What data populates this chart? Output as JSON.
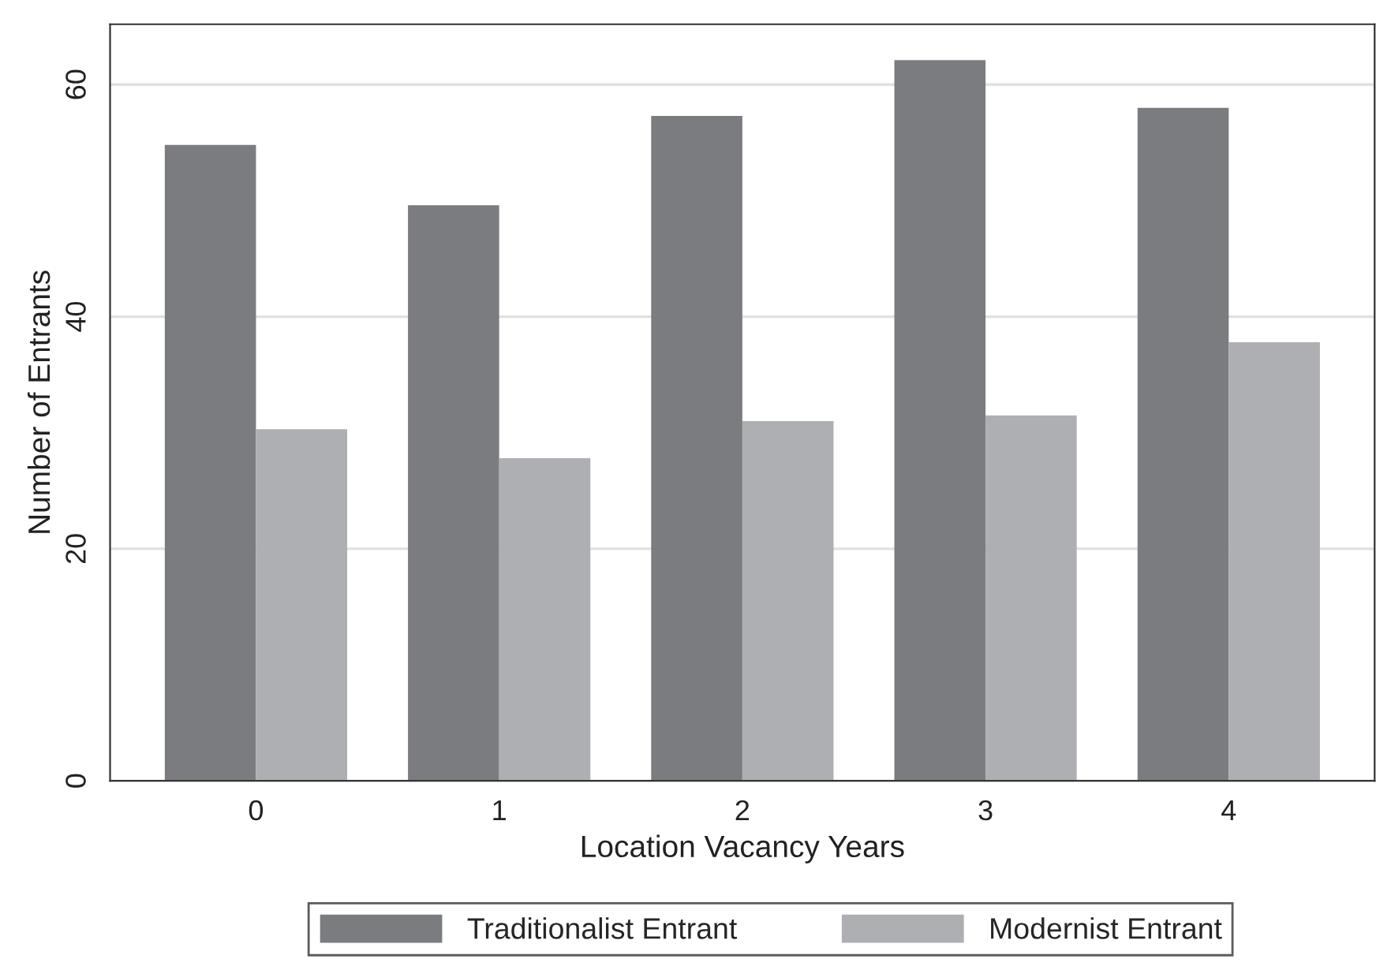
{
  "chart_data": {
    "type": "bar",
    "xlabel": "Location Vacancy Years",
    "ylabel": "Number of Entrants",
    "categories": [
      "0",
      "1",
      "2",
      "3",
      "4"
    ],
    "series": [
      {
        "name": "Traditionalist Entrant",
        "color": "#7b7c80",
        "values": [
          54.8,
          49.6,
          57.3,
          62.1,
          58.0
        ]
      },
      {
        "name": "Modernist Entrant",
        "color": "#aeafb2",
        "values": [
          30.3,
          27.8,
          31.0,
          31.5,
          37.8
        ]
      }
    ],
    "ylim": [
      0,
      65.2
    ],
    "yticks": [
      0,
      20,
      40,
      60
    ],
    "grid": "y",
    "legend": "bottom"
  }
}
